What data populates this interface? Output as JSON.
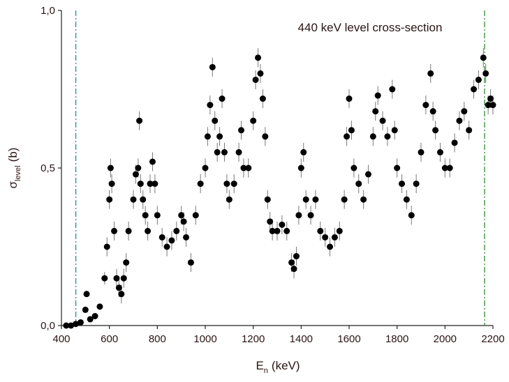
{
  "chart_data": {
    "type": "scatter",
    "annotation": "440 keV level cross-section",
    "xlabel": {
      "symbol": "E",
      "subscript": "n",
      "unit": "(keV)"
    },
    "ylabel": {
      "symbol": "σ",
      "subscript": "level",
      "unit": "(b)"
    },
    "xlim": [
      400,
      2200
    ],
    "xticks": [
      400,
      600,
      800,
      1000,
      1200,
      1400,
      1600,
      1800,
      2000,
      2200
    ],
    "ylim": [
      0,
      1.0
    ],
    "yticks": [
      {
        "value": 0,
        "label": "0,0"
      },
      {
        "value": 0.5,
        "label": "0,5"
      },
      {
        "value": 1.0,
        "label": "1,0"
      }
    ],
    "vlines": [
      {
        "x": 460,
        "color": "#1f8f8f"
      },
      {
        "x": 2165,
        "color": "#2e8b2e"
      }
    ],
    "color": "#000000",
    "error_color": "#888888",
    "x": [
      420,
      440,
      460,
      480,
      500,
      505,
      520,
      540,
      560,
      580,
      590,
      600,
      605,
      610,
      620,
      630,
      640,
      650,
      660,
      670,
      680,
      700,
      710,
      720,
      725,
      730,
      740,
      750,
      760,
      770,
      780,
      790,
      800,
      820,
      840,
      860,
      880,
      900,
      910,
      920,
      940,
      960,
      980,
      1000,
      1010,
      1020,
      1030,
      1040,
      1050,
      1060,
      1070,
      1080,
      1090,
      1100,
      1120,
      1140,
      1150,
      1160,
      1180,
      1200,
      1210,
      1220,
      1230,
      1240,
      1250,
      1260,
      1270,
      1280,
      1300,
      1320,
      1340,
      1360,
      1370,
      1380,
      1390,
      1400,
      1410,
      1420,
      1440,
      1460,
      1480,
      1500,
      1520,
      1540,
      1560,
      1580,
      1590,
      1600,
      1610,
      1620,
      1640,
      1660,
      1680,
      1700,
      1710,
      1720,
      1740,
      1760,
      1780,
      1790,
      1800,
      1820,
      1840,
      1860,
      1880,
      1900,
      1920,
      1940,
      1950,
      1960,
      1980,
      2000,
      2020,
      2040,
      2060,
      2080,
      2100,
      2120,
      2140,
      2160,
      2170,
      2180,
      2190,
      2200
    ],
    "values": [
      0,
      0,
      0.005,
      0.01,
      0.05,
      0.1,
      0.02,
      0.03,
      0.06,
      0.15,
      0.25,
      0.4,
      0.5,
      0.45,
      0.3,
      0.15,
      0.12,
      0.1,
      0.15,
      0.2,
      0.3,
      0.4,
      0.48,
      0.5,
      0.65,
      0.45,
      0.4,
      0.35,
      0.3,
      0.45,
      0.52,
      0.45,
      0.35,
      0.28,
      0.25,
      0.27,
      0.3,
      0.35,
      0.33,
      0.28,
      0.2,
      0.35,
      0.45,
      0.5,
      0.6,
      0.7,
      0.82,
      0.65,
      0.55,
      0.6,
      0.72,
      0.55,
      0.45,
      0.4,
      0.45,
      0.55,
      0.62,
      0.5,
      0.5,
      0.65,
      0.78,
      0.85,
      0.8,
      0.72,
      0.6,
      0.4,
      0.33,
      0.3,
      0.3,
      0.32,
      0.3,
      0.2,
      0.18,
      0.22,
      0.35,
      0.5,
      0.55,
      0.4,
      0.35,
      0.4,
      0.3,
      0.28,
      0.25,
      0.28,
      0.3,
      0.4,
      0.6,
      0.72,
      0.62,
      0.5,
      0.45,
      0.4,
      0.48,
      0.6,
      0.68,
      0.73,
      0.65,
      0.6,
      0.75,
      0.62,
      0.5,
      0.45,
      0.4,
      0.35,
      0.45,
      0.55,
      0.7,
      0.8,
      0.68,
      0.62,
      0.55,
      0.5,
      0.5,
      0.58,
      0.65,
      0.68,
      0.62,
      0.75,
      0.78,
      0.85,
      0.8,
      0.7,
      0.72,
      0.7
    ],
    "errors": [
      0.005,
      0.005,
      0.005,
      0.005,
      0.01,
      0.01,
      0.005,
      0.005,
      0.01,
      0.02,
      0.03,
      0.03,
      0.03,
      0.03,
      0.03,
      0.03,
      0.03,
      0.03,
      0.03,
      0.03,
      0.03,
      0.03,
      0.03,
      0.03,
      0.03,
      0.03,
      0.03,
      0.03,
      0.03,
      0.03,
      0.03,
      0.03,
      0.03,
      0.03,
      0.03,
      0.03,
      0.03,
      0.03,
      0.03,
      0.03,
      0.03,
      0.03,
      0.03,
      0.03,
      0.03,
      0.03,
      0.03,
      0.03,
      0.03,
      0.03,
      0.03,
      0.03,
      0.03,
      0.03,
      0.03,
      0.03,
      0.03,
      0.03,
      0.03,
      0.03,
      0.03,
      0.03,
      0.03,
      0.03,
      0.03,
      0.03,
      0.03,
      0.03,
      0.03,
      0.03,
      0.03,
      0.03,
      0.03,
      0.03,
      0.03,
      0.03,
      0.03,
      0.03,
      0.03,
      0.03,
      0.03,
      0.03,
      0.03,
      0.03,
      0.03,
      0.03,
      0.03,
      0.03,
      0.03,
      0.03,
      0.03,
      0.03,
      0.03,
      0.03,
      0.03,
      0.03,
      0.03,
      0.03,
      0.03,
      0.03,
      0.03,
      0.03,
      0.03,
      0.03,
      0.03,
      0.03,
      0.03,
      0.03,
      0.03,
      0.03,
      0.03,
      0.03,
      0.03,
      0.03,
      0.03,
      0.03,
      0.03,
      0.03,
      0.03,
      0.03,
      0.03,
      0.03,
      0.03,
      0.03
    ]
  }
}
